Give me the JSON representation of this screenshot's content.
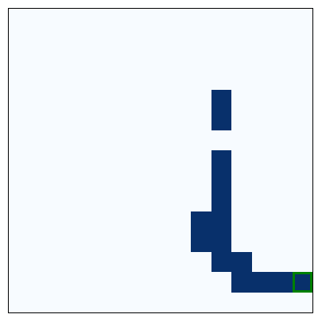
{
  "grid": {
    "rows": 15,
    "cols": 15,
    "colors": {
      "empty": "#f7fbff",
      "filled": "#08306b",
      "cursor": "#008000"
    },
    "filled_cells": [
      {
        "row": 4,
        "col": 10
      },
      {
        "row": 5,
        "col": 10
      },
      {
        "row": 7,
        "col": 10
      },
      {
        "row": 8,
        "col": 10
      },
      {
        "row": 9,
        "col": 10
      },
      {
        "row": 10,
        "col": 9
      },
      {
        "row": 10,
        "col": 10
      },
      {
        "row": 11,
        "col": 9
      },
      {
        "row": 11,
        "col": 10
      },
      {
        "row": 12,
        "col": 10
      },
      {
        "row": 12,
        "col": 11
      },
      {
        "row": 13,
        "col": 11
      },
      {
        "row": 13,
        "col": 12
      },
      {
        "row": 13,
        "col": 13
      },
      {
        "row": 13,
        "col": 14
      }
    ],
    "cursor": {
      "row": 13,
      "col": 14
    }
  }
}
